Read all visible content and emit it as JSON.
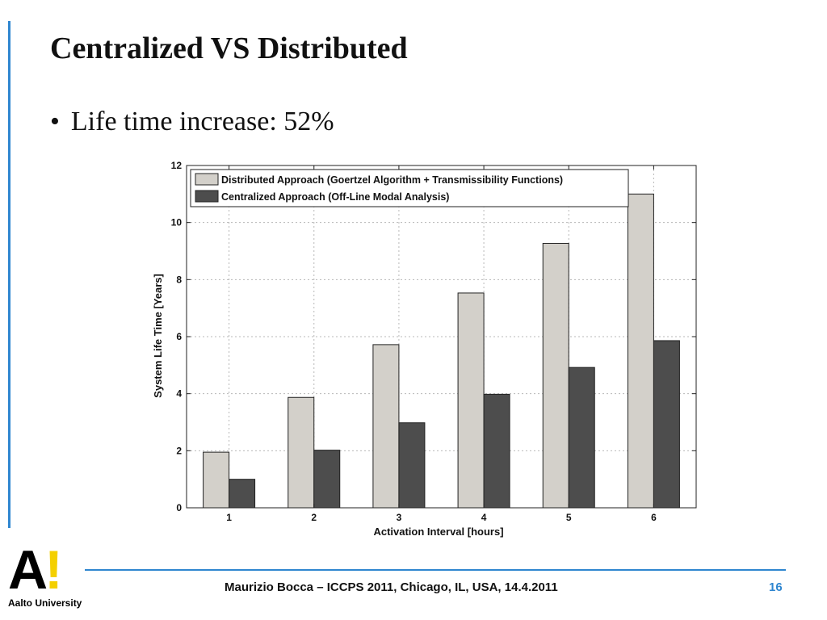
{
  "slide": {
    "title": "Centralized VS Distributed",
    "bullet": "Life time increase: 52%",
    "bullet_marker": "•"
  },
  "footer": {
    "logo_mark_letter": "A",
    "logo_mark_bang": "!",
    "logo_name": "Aalto University",
    "text": "Maurizio Bocca – ICCPS 2011, Chicago, IL, USA, 14.4.2011",
    "page_number": "16"
  },
  "colors": {
    "accent": "#2f86d0",
    "logo_yellow": "#f4d000",
    "distributed": "#d3d0ca",
    "centralized": "#4d4d4d"
  },
  "chart_data": {
    "type": "bar",
    "xlabel": "Activation Interval [hours]",
    "ylabel": "System Life Time [Years]",
    "categories": [
      "1",
      "2",
      "3",
      "4",
      "5",
      "6"
    ],
    "series": [
      {
        "name": "Distributed Approach (Goertzel Algorithm + Transmissibility Functions)",
        "values": [
          1.95,
          3.87,
          5.72,
          7.53,
          9.27,
          11.0
        ],
        "color": "#d3d0ca"
      },
      {
        "name": "Centralized Approach (Off-Line Modal Analysis)",
        "values": [
          1.0,
          2.02,
          2.98,
          3.98,
          4.92,
          5.86
        ],
        "color": "#4d4d4d"
      }
    ],
    "ylim": [
      0,
      12
    ],
    "yticks": [
      0,
      2,
      4,
      6,
      8,
      10,
      12
    ],
    "grid": true,
    "legend": "top-left"
  }
}
